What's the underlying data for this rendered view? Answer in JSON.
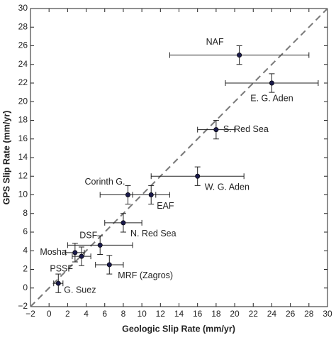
{
  "chart_data": {
    "type": "scatter",
    "xlabel": "Geologic Slip Rate (mm/yr)",
    "ylabel": "GPS Slip Rate (mm/yr)",
    "labels": [
      "NAF",
      "E. G. Aden",
      "S. Red Sea",
      "W. G. Aden",
      "Corinth G.",
      "EAF",
      "N. Red Sea",
      "DSF",
      "Mosha",
      "PSSF",
      "MRF (Zagros)",
      "G. Suez"
    ],
    "x": [
      20.5,
      24,
      18,
      16,
      8.5,
      11,
      8,
      5.5,
      2.8,
      3.5,
      6.5,
      1
    ],
    "values": [
      25,
      22,
      17,
      12,
      10,
      10,
      7,
      4.6,
      3.8,
      3.4,
      2.5,
      0.5
    ],
    "xerr": [
      7.5,
      5,
      2,
      5,
      3,
      2,
      2,
      3.5,
      1,
      1,
      1.5,
      0.5
    ],
    "yerr": [
      1,
      1,
      1,
      1,
      1,
      1,
      1,
      1,
      1,
      1,
      1,
      1
    ],
    "color": "#1a1a4a",
    "reference_line": "y=x",
    "xlim": [
      -2,
      30
    ],
    "ylim": [
      -2,
      30
    ],
    "xticks": [
      {
        "value": -2,
        "label": "−2"
      },
      0,
      2,
      4,
      6,
      8,
      10,
      12,
      14,
      16,
      18,
      20,
      22,
      24,
      26,
      28,
      30
    ],
    "yticks": [
      {
        "value": -2,
        "label": "−2"
      },
      0,
      2,
      4,
      6,
      8,
      10,
      12,
      14,
      16,
      18,
      20,
      22,
      24,
      26,
      28,
      30
    ]
  }
}
